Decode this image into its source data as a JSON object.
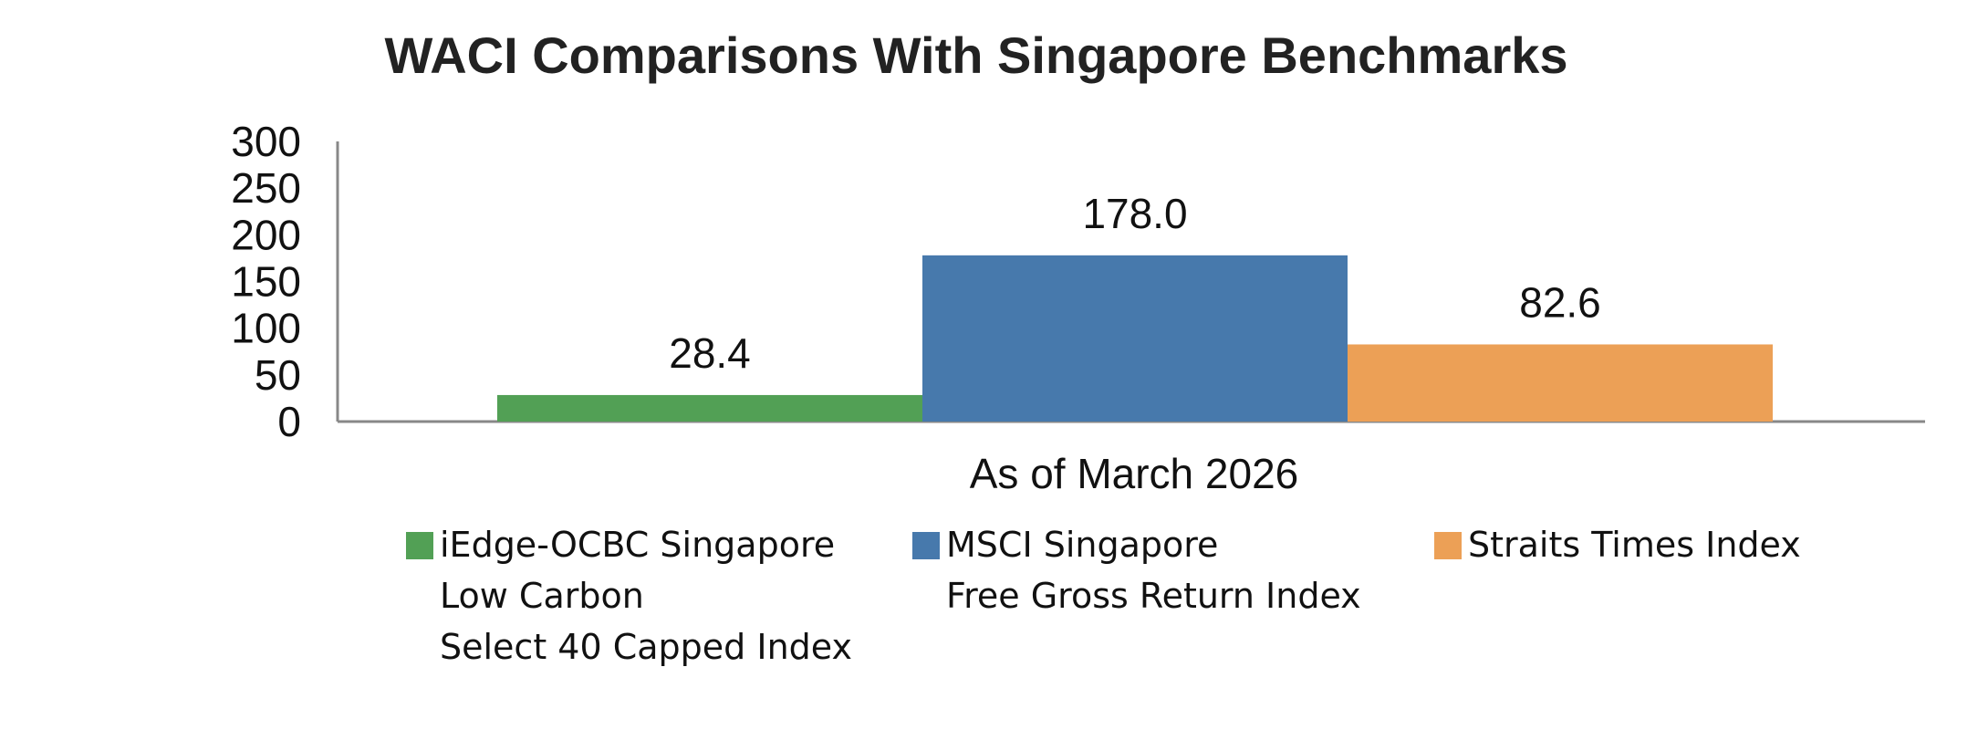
{
  "chart_data": {
    "type": "bar",
    "title": "WACI Comparisons With Singapore Benchmarks",
    "categories": [
      "As of March 2026"
    ],
    "series": [
      {
        "name": "iEdge-OCBC Singapore Low Carbon Select 40 Capped Index",
        "legend_lines": [
          "iEdge-OCBC Singapore",
          "Low Carbon",
          "Select 40 Capped Index"
        ],
        "values": [
          28.4
        ],
        "label": "28.4",
        "color": "#52a055"
      },
      {
        "name": "MSCI Singapore Free Gross Return Index",
        "legend_lines": [
          "MSCI Singapore",
          "Free Gross Return Index"
        ],
        "values": [
          178.0
        ],
        "label": "178.0",
        "color": "#4779ac"
      },
      {
        "name": "Straits Times Index",
        "legend_lines": [
          "Straits Times Index"
        ],
        "values": [
          82.6
        ],
        "label": "82.6",
        "color": "#eca056"
      }
    ],
    "yticks": [
      "0",
      "50",
      "100",
      "150",
      "200",
      "250",
      "300"
    ],
    "ylim": [
      0,
      300
    ],
    "grid": false,
    "legend": "bottom"
  }
}
